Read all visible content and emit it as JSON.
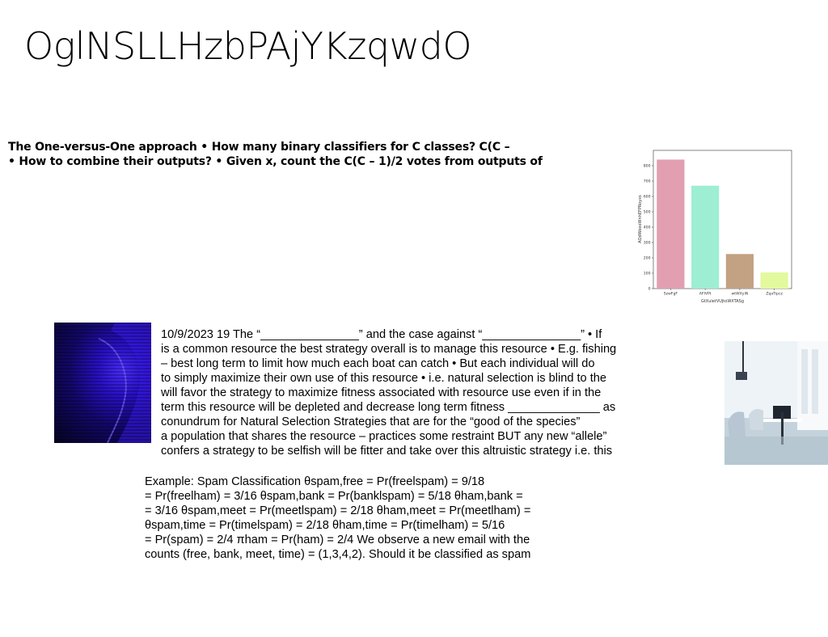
{
  "title": "OglNSLLHzbPAjYKzqwdO",
  "bold_block": {
    "lines": [
      "The One-versus-One approach • How many binary classifiers for C classes? C(C –",
      "• How to combine their outputs? • Given x, count the C(C – 1)/2 votes from outputs of"
    ]
  },
  "paragraph1": {
    "lines": [
      "10/9/2023 19 The “_______________” and the case against “_______________” • If",
      "is a common resource the best strategy overall is to manage this resource • E.g. fishing",
      "– best long term to limit how much each boat can catch • But each individual will do",
      "to simply maximize their own use of this resource • i.e. natural selection is blind to the",
      "will favor the strategy to maximize fitness associated with resource use even if in the",
      "term this resource will be depleted and decrease long term fitness ______________ as",
      "conundrum for Natural Selection Strategies that are for the “good of the species”",
      "a population that shares the resource – practices some restraint BUT any new “allele”",
      "confers a strategy to be selfish will be fitter and take over this altruistic strategy i.e. this"
    ]
  },
  "paragraph2": {
    "lines": [
      "Example: Spam Classification θspam,free = Pr(freelspam) = 9/18",
      "= Pr(freelham) = 3/16 θspam,bank = Pr(banklspam) = 5/18 θham,bank =",
      "= 3/16 θspam,meet = Pr(meetlspam) = 2/18 θham,meet = Pr(meetlham) =",
      "θspam,time = Pr(timelspam) = 2/18 θham,time = Pr(timelham) = 5/16",
      "= Pr(spam) = 2/4 πham = Pr(ham) = 2/4 We observe a new email with the",
      "counts (free, bank, meet, time) = (1,3,4,2). Should it be classified as spam"
    ]
  },
  "chart_data": {
    "type": "bar",
    "categories": [
      "SzwFgF",
      "AFIVPt",
      "wtWXyiN",
      "ZqaTipcz"
    ],
    "values": [
      840,
      670,
      225,
      105
    ],
    "colors": [
      "#e29fb2",
      "#9deed3",
      "#c3a183",
      "#e3f99e"
    ],
    "xlabel": "GtXuletVUjtoWXTASg",
    "ylabel": "AQdWoooWnhEFPRoyxs",
    "ylim": [
      0,
      900
    ],
    "yticks": [
      0,
      100,
      200,
      300,
      400,
      500,
      600,
      700,
      800
    ],
    "grid": false
  }
}
